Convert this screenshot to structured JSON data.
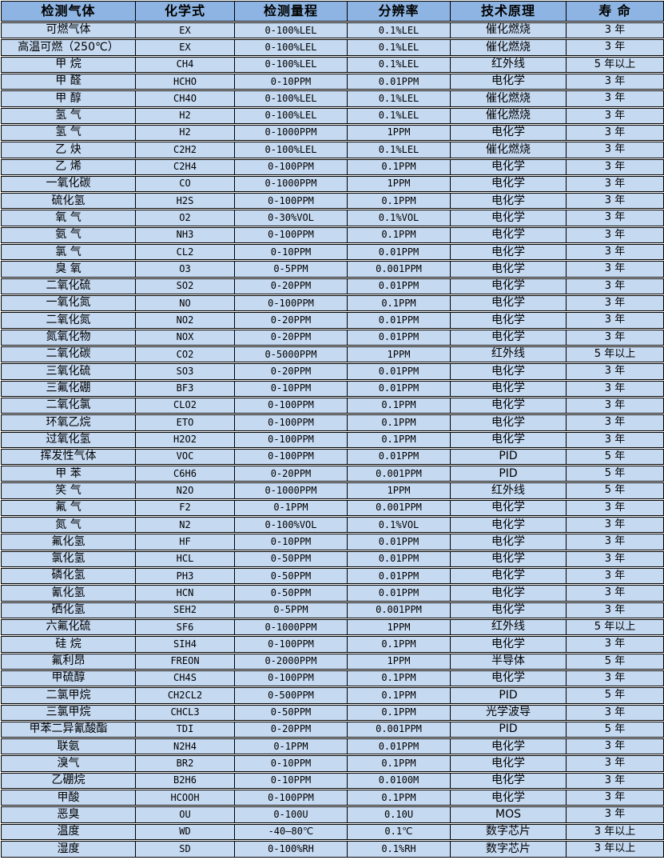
{
  "table": {
    "columns": [
      "检测气体",
      "化学式",
      "检测量程",
      "分辨率",
      "技术原理",
      "寿 命"
    ],
    "column_keys": [
      "gas-name",
      "formula",
      "range",
      "resolution",
      "principle",
      "lifespan"
    ],
    "rows": [
      [
        "可燃气体",
        "EX",
        "0-100%LEL",
        "0.1%LEL",
        "催化燃烧",
        "3 年"
      ],
      [
        "高温可燃（250℃）",
        "EX",
        "0-100%LEL",
        "0.1%LEL",
        "催化燃烧",
        "3 年"
      ],
      [
        "甲 烷",
        "CH4",
        "0-100%LEL",
        "0.1%LEL",
        "红外线",
        "5 年以上"
      ],
      [
        "甲 醛",
        "HCHO",
        "0-10PPM",
        "0.01PPM",
        "电化学",
        "3 年"
      ],
      [
        "甲 醇",
        "CH4O",
        "0-100%LEL",
        "0.1%LEL",
        "催化燃烧",
        "3 年"
      ],
      [
        "氢 气",
        "H2",
        "0-100%LEL",
        "0.1%LEL",
        "催化燃烧",
        "3 年"
      ],
      [
        "氢 气",
        "H2",
        "0-1000PPM",
        "1PPM",
        "电化学",
        "3 年"
      ],
      [
        "乙 炔",
        "C2H2",
        "0-100%LEL",
        "0.1%LEL",
        "催化燃烧",
        "3 年"
      ],
      [
        "乙 烯",
        "C2H4",
        "0-100PPM",
        "0.1PPM",
        "电化学",
        "3 年"
      ],
      [
        "一氧化碳",
        "CO",
        "0-1000PPM",
        "1PPM",
        "电化学",
        "3 年"
      ],
      [
        "硫化氢",
        "H2S",
        "0-100PPM",
        "0.1PPM",
        "电化学",
        "3 年"
      ],
      [
        "氧 气",
        "O2",
        "0-30%VOL",
        "0.1%VOL",
        "电化学",
        "3 年"
      ],
      [
        "氨 气",
        "NH3",
        "0-100PPM",
        "0.1PPM",
        "电化学",
        "3 年"
      ],
      [
        "氯 气",
        "CL2",
        "0-10PPM",
        "0.01PPM",
        "电化学",
        "3 年"
      ],
      [
        "臭 氧",
        "O3",
        "0-5PPM",
        "0.001PPM",
        "电化学",
        "3 年"
      ],
      [
        "二氧化硫",
        "SO2",
        "0-20PPM",
        "0.01PPM",
        "电化学",
        "3 年"
      ],
      [
        "一氧化氮",
        "NO",
        "0-100PPM",
        "0.1PPM",
        "电化学",
        "3 年"
      ],
      [
        "二氧化氮",
        "NO2",
        "0-20PPM",
        "0.01PPM",
        "电化学",
        "3 年"
      ],
      [
        "氮氧化物",
        "NOX",
        "0-20PPM",
        "0.01PPM",
        "电化学",
        "3 年"
      ],
      [
        "二氧化碳",
        "CO2",
        "0-5000PPM",
        "1PPM",
        "红外线",
        "5 年以上"
      ],
      [
        "三氧化硫",
        "SO3",
        "0-20PPM",
        "0.01PPM",
        "电化学",
        "3 年"
      ],
      [
        "三氟化硼",
        "BF3",
        "0-10PPM",
        "0.01PPM",
        "电化学",
        "3 年"
      ],
      [
        "二氧化氯",
        "CLO2",
        "0-100PPM",
        "0.1PPM",
        "电化学",
        "3 年"
      ],
      [
        "环氧乙烷",
        "ETO",
        "0-100PPM",
        "0.1PPM",
        "电化学",
        "3 年"
      ],
      [
        "过氧化氢",
        "H2O2",
        "0-100PPM",
        "0.1PPM",
        "电化学",
        "3 年"
      ],
      [
        "挥发性气体",
        "VOC",
        "0-100PPM",
        "0.01PPM",
        "PID",
        "5 年"
      ],
      [
        "甲 苯",
        "C6H6",
        "0-20PPM",
        "0.001PPM",
        "PID",
        "5 年"
      ],
      [
        "笑 气",
        "N2O",
        "0-1000PPM",
        "1PPM",
        "红外线",
        "5 年"
      ],
      [
        "氟 气",
        "F2",
        "0-1PPM",
        "0.001PPM",
        "电化学",
        "3 年"
      ],
      [
        "氮 气",
        "N2",
        "0-100%VOL",
        "0.1%VOL",
        "电化学",
        "3 年"
      ],
      [
        "氟化氢",
        "HF",
        "0-10PPM",
        "0.01PPM",
        "电化学",
        "3 年"
      ],
      [
        "氯化氢",
        "HCL",
        "0-50PPM",
        "0.01PPM",
        "电化学",
        "3 年"
      ],
      [
        "磷化氢",
        "PH3",
        "0-50PPM",
        "0.01PPM",
        "电化学",
        "3 年"
      ],
      [
        "氰化氢",
        "HCN",
        "0-50PPM",
        "0.01PPM",
        "电化学",
        "3 年"
      ],
      [
        "硒化氢",
        "SEH2",
        "0-5PPM",
        "0.001PPM",
        "电化学",
        "3 年"
      ],
      [
        "六氟化硫",
        "SF6",
        "0-1000PPM",
        "1PPM",
        "红外线",
        "5 年以上"
      ],
      [
        "硅 烷",
        "SIH4",
        "0-100PPM",
        "0.1PPM",
        "电化学",
        "3 年"
      ],
      [
        "氟利昂",
        "FREON",
        "0-2000PPM",
        "1PPM",
        "半导体",
        "5 年"
      ],
      [
        "甲硫醇",
        "CH4S",
        "0-100PPM",
        "0.1PPM",
        "电化学",
        "3 年"
      ],
      [
        "二氯甲烷",
        "CH2CL2",
        "0-500PPM",
        "0.1PPM",
        "PID",
        "5 年"
      ],
      [
        "三氯甲烷",
        "CHCL3",
        "0-50PPM",
        "0.1PPM",
        "光学波导",
        "3 年"
      ],
      [
        "甲苯二异氰酸酯",
        "TDI",
        "0-20PPM",
        "0.001PPM",
        "PID",
        "5 年"
      ],
      [
        "联氨",
        "N2H4",
        "0-1PPM",
        "0.01PPM",
        "电化学",
        "3 年"
      ],
      [
        "溴气",
        "BR2",
        "0-10PPM",
        "0.1PPM",
        "电化学",
        "3 年"
      ],
      [
        "乙硼烷",
        "B2H6",
        "0-10PPM",
        "0.0100M",
        "电化学",
        "3 年"
      ],
      [
        "甲酸",
        "HCOOH",
        "0-100PPM",
        "0.1PPM",
        "电化学",
        "3 年"
      ],
      [
        "恶臭",
        "OU",
        "0-100U",
        "0.10U",
        "MOS",
        "3 年"
      ],
      [
        "温度",
        "WD",
        "-40—80℃",
        "0.1℃",
        "数字芯片",
        "3 年以上"
      ],
      [
        "湿度",
        "SD",
        "0-100%RH",
        "0.1%RH",
        "数字芯片",
        "3 年以上"
      ]
    ],
    "colors": {
      "header_bg": "#8DB4E2",
      "row_bg": "#C5D9F1",
      "border": "#000000",
      "text": "#000000"
    }
  }
}
